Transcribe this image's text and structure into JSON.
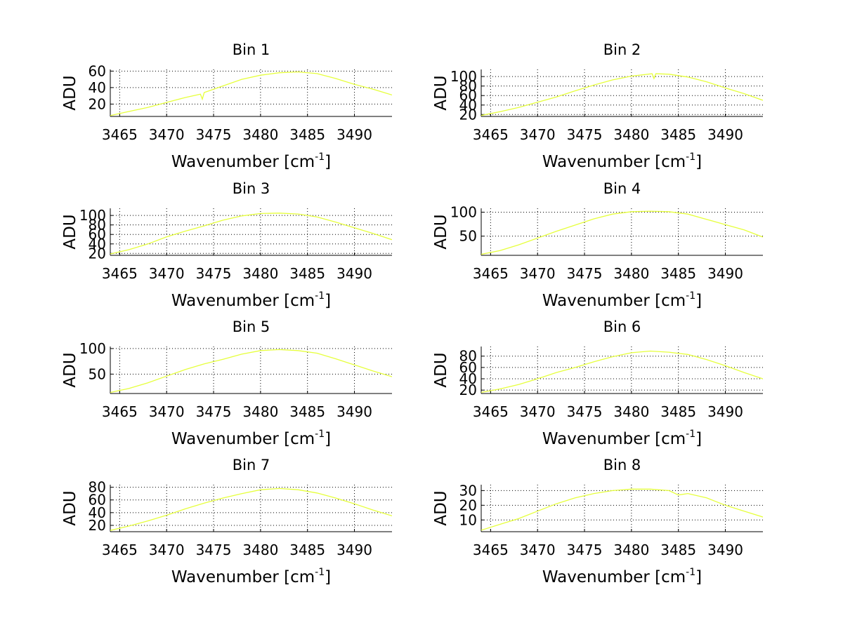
{
  "chart_data": [
    {
      "type": "line",
      "title": "Bin 1",
      "xlabel": "Wavenumber [cm",
      "xlabel_sup": "-1",
      "xlabel_end": "]",
      "ylabel": "ADU",
      "xlim": [
        3464,
        3494
      ],
      "ylim": [
        5,
        62
      ],
      "xticks": [
        3465,
        3470,
        3475,
        3480,
        3485,
        3490
      ],
      "yticks": [
        20,
        40,
        60
      ],
      "line_color": "#e6ff3c",
      "grid": true,
      "x": [
        3464,
        3466,
        3468,
        3470,
        3472,
        3473.6,
        3473.8,
        3474,
        3476,
        3478,
        3480,
        3482,
        3484,
        3486,
        3488,
        3490,
        3492,
        3494
      ],
      "y": [
        6,
        11,
        16,
        22,
        28,
        32,
        26,
        34,
        42,
        50,
        55,
        58,
        59,
        57,
        51,
        44,
        38,
        31
      ]
    },
    {
      "type": "line",
      "title": "Bin 2",
      "xlabel": "Wavenumber [cm",
      "xlabel_sup": "-1",
      "xlabel_end": "]",
      "ylabel": "ADU",
      "xlim": [
        3464,
        3494
      ],
      "ylim": [
        16,
        115
      ],
      "xticks": [
        3465,
        3470,
        3475,
        3480,
        3485,
        3490
      ],
      "yticks": [
        20,
        40,
        60,
        80,
        100
      ],
      "line_color": "#e6ff3c",
      "grid": true,
      "x": [
        3464,
        3466,
        3468,
        3470,
        3472,
        3474,
        3476,
        3478,
        3480,
        3482.2,
        3482.4,
        3482.6,
        3484,
        3486,
        3488,
        3490,
        3492,
        3494
      ],
      "y": [
        18,
        26,
        35,
        46,
        57,
        70,
        82,
        93,
        101,
        106,
        96,
        106,
        105,
        99,
        89,
        76,
        64,
        50
      ]
    },
    {
      "type": "line",
      "title": "Bin 3",
      "xlabel": "Wavenumber [cm",
      "xlabel_sup": "-1",
      "xlabel_end": "]",
      "ylabel": "ADU",
      "xlim": [
        3464,
        3494
      ],
      "ylim": [
        16,
        115
      ],
      "xticks": [
        3465,
        3470,
        3475,
        3480,
        3485,
        3490
      ],
      "yticks": [
        20,
        40,
        60,
        80,
        100
      ],
      "line_color": "#e6ff3c",
      "grid": true,
      "x": [
        3464,
        3466,
        3468,
        3470,
        3472,
        3474,
        3476,
        3478,
        3480,
        3482,
        3484,
        3486,
        3488,
        3490,
        3492,
        3494
      ],
      "y": [
        19,
        28,
        40,
        55,
        67,
        78,
        90,
        99,
        104,
        105,
        103,
        97,
        86,
        74,
        62,
        49
      ]
    },
    {
      "type": "line",
      "title": "Bin 4",
      "xlabel": "Wavenumber [cm",
      "xlabel_sup": "-1",
      "xlabel_end": "]",
      "ylabel": "ADU",
      "xlim": [
        3464,
        3494
      ],
      "ylim": [
        10,
        108
      ],
      "xticks": [
        3465,
        3470,
        3475,
        3480,
        3485,
        3490
      ],
      "yticks": [
        50,
        100
      ],
      "line_color": "#e6ff3c",
      "grid": true,
      "x": [
        3464,
        3466,
        3468,
        3470,
        3472,
        3474,
        3476,
        3478,
        3480,
        3482,
        3484,
        3486,
        3488,
        3490,
        3492,
        3494
      ],
      "y": [
        12,
        20,
        32,
        46,
        60,
        73,
        86,
        96,
        101,
        102,
        101,
        96,
        85,
        74,
        63,
        48
      ]
    },
    {
      "type": "line",
      "title": "Bin 5",
      "xlabel": "Wavenumber [cm",
      "xlabel_sup": "-1",
      "xlabel_end": "]",
      "ylabel": "ADU",
      "xlim": [
        3464,
        3494
      ],
      "ylim": [
        12,
        104
      ],
      "xticks": [
        3465,
        3470,
        3475,
        3480,
        3485,
        3490
      ],
      "yticks": [
        50,
        100
      ],
      "line_color": "#e6ff3c",
      "grid": true,
      "x": [
        3464,
        3466,
        3468,
        3470,
        3472,
        3474,
        3476,
        3478,
        3480,
        3482,
        3484,
        3486,
        3488,
        3490,
        3492,
        3494
      ],
      "y": [
        14,
        22,
        33,
        46,
        59,
        70,
        79,
        89,
        96,
        98,
        96,
        91,
        80,
        68,
        56,
        45
      ]
    },
    {
      "type": "line",
      "title": "Bin 6",
      "xlabel": "Wavenumber [cm",
      "xlabel_sup": "-1",
      "xlabel_end": "]",
      "ylabel": "ADU",
      "xlim": [
        3464,
        3494
      ],
      "ylim": [
        14,
        97
      ],
      "xticks": [
        3465,
        3470,
        3475,
        3480,
        3485,
        3490
      ],
      "yticks": [
        20,
        40,
        60,
        80
      ],
      "line_color": "#e6ff3c",
      "grid": true,
      "x": [
        3464,
        3466,
        3468,
        3470,
        3472,
        3474,
        3476,
        3478,
        3480,
        3482,
        3484,
        3486,
        3488,
        3490,
        3492,
        3494
      ],
      "y": [
        16,
        22,
        30,
        40,
        51,
        60,
        70,
        79,
        86,
        89,
        87,
        83,
        74,
        63,
        51,
        40
      ]
    },
    {
      "type": "line",
      "title": "Bin 7",
      "xlabel": "Wavenumber [cm",
      "xlabel_sup": "-1",
      "xlabel_end": "]",
      "ylabel": "ADU",
      "xlim": [
        3464,
        3494
      ],
      "ylim": [
        10,
        84
      ],
      "xticks": [
        3465,
        3470,
        3475,
        3480,
        3485,
        3490
      ],
      "yticks": [
        20,
        40,
        60,
        80
      ],
      "line_color": "#e6ff3c",
      "grid": true,
      "x": [
        3464,
        3466,
        3468,
        3470,
        3472,
        3474,
        3476,
        3478,
        3480,
        3482,
        3484,
        3486,
        3488,
        3490,
        3492,
        3494
      ],
      "y": [
        12,
        19,
        27,
        36,
        46,
        55,
        63,
        70,
        76,
        78,
        76,
        71,
        63,
        54,
        44,
        35
      ]
    },
    {
      "type": "line",
      "title": "Bin 8",
      "xlabel": "Wavenumber [cm",
      "xlabel_sup": "-1",
      "xlabel_end": "]",
      "ylabel": "ADU",
      "xlim": [
        3464,
        3494
      ],
      "ylim": [
        2,
        34
      ],
      "xticks": [
        3465,
        3470,
        3475,
        3480,
        3485,
        3490
      ],
      "yticks": [
        10,
        20,
        30
      ],
      "line_color": "#e6ff3c",
      "grid": true,
      "x": [
        3464,
        3466,
        3468,
        3470,
        3472,
        3474,
        3476,
        3478,
        3480,
        3482,
        3484,
        3485,
        3486,
        3488,
        3490,
        3492,
        3494
      ],
      "y": [
        3,
        7,
        11,
        16,
        21,
        25,
        28,
        30,
        31,
        31,
        30,
        27,
        28,
        25,
        20,
        16,
        12
      ]
    }
  ]
}
